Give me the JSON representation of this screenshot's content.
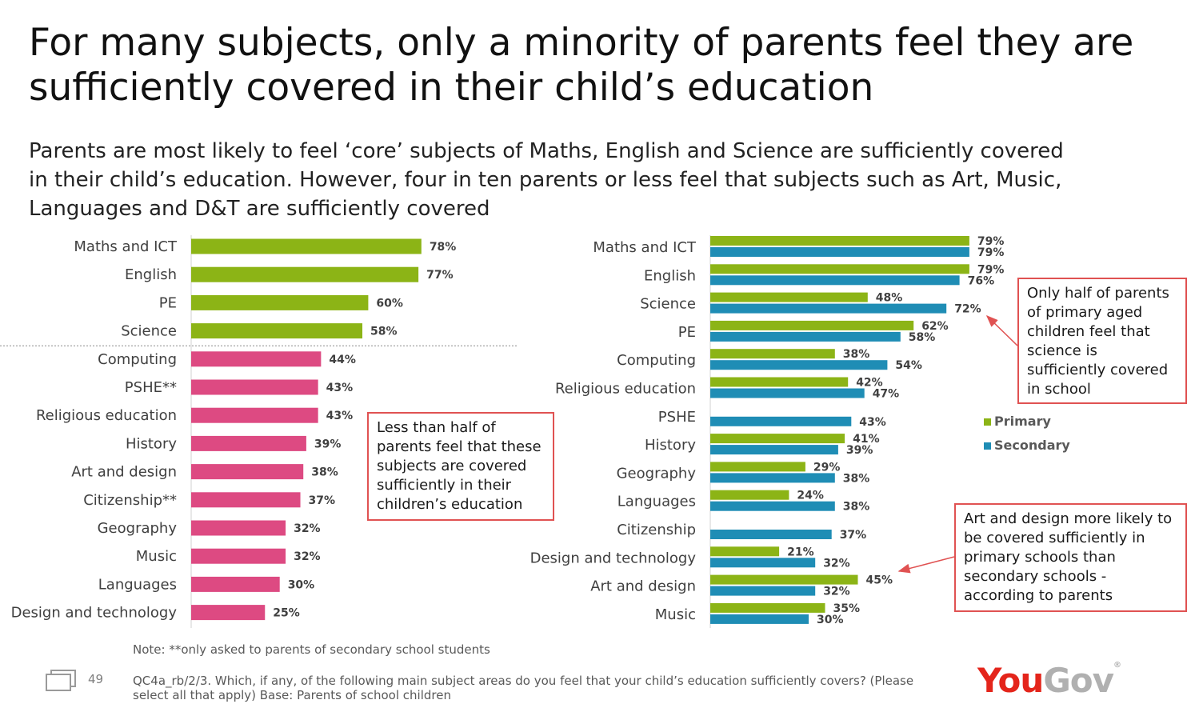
{
  "title": "For many subjects, only a minority of parents feel they are sufficiently covered in their child’s education",
  "subtitle": "Parents are most likely to feel ‘core’ subjects of Maths, English and Science are sufficiently covered in their child’s education. However, four in ten parents or less feel that subjects such as Art, Music, Languages and D&T are sufficiently covered",
  "callouts": {
    "left": "Less than half of parents feel that these subjects are covered sufficiently in their children’s education",
    "top_right": "Only half of parents of primary aged children feel that science is sufficiently covered in school",
    "bottom_right": "Art and design more likely to be covered sufficiently in primary schools than secondary schools - according to parents"
  },
  "footer": {
    "note": "Note: **only asked to parents of secondary school students",
    "source": "QC4a_rb/2/3. Which, if any, of the following main subject areas do you feel that your child’s education sufficiently covers? (Please select all that apply) Base: Parents of school children",
    "page_number": "49",
    "logo_you": "You",
    "logo_gov": "Gov",
    "logo_reg": "®"
  },
  "chart_data": [
    {
      "type": "bar",
      "orientation": "horizontal",
      "categories": [
        "Maths and ICT",
        "English",
        "PE",
        "Science",
        "Computing",
        "PSHE**",
        "Religious education",
        "History",
        "Art and design",
        "Citizenship**",
        "Geography",
        "Music",
        "Languages",
        "Design and technology"
      ],
      "values": [
        78,
        77,
        60,
        58,
        44,
        43,
        43,
        39,
        38,
        37,
        32,
        32,
        30,
        25
      ],
      "value_suffix": "%",
      "colors": [
        "#8cb416",
        "#8cb416",
        "#8cb416",
        "#8cb416",
        "#dd4a82",
        "#dd4a82",
        "#dd4a82",
        "#dd4a82",
        "#dd4a82",
        "#dd4a82",
        "#dd4a82",
        "#dd4a82",
        "#dd4a82",
        "#dd4a82"
      ],
      "divider_after_index": 3,
      "xlim": [
        0,
        100
      ]
    },
    {
      "type": "bar",
      "orientation": "horizontal",
      "categories": [
        "Maths and ICT",
        "English",
        "Science",
        "PE",
        "Computing",
        "Religious education",
        "PSHE",
        "History",
        "Geography",
        "Languages",
        "Citizenship",
        "Design and technology",
        "Art and design",
        "Music"
      ],
      "series": [
        {
          "name": "Primary",
          "color": "#8cb416",
          "values": [
            79,
            79,
            48,
            62,
            38,
            42,
            null,
            41,
            29,
            24,
            null,
            21,
            45,
            35
          ]
        },
        {
          "name": "Secondary",
          "color": "#1f8db5",
          "values": [
            79,
            76,
            72,
            58,
            54,
            47,
            43,
            39,
            38,
            38,
            37,
            32,
            32,
            30
          ]
        }
      ],
      "value_suffix": "%",
      "legend": "right",
      "xlim": [
        0,
        100
      ]
    }
  ]
}
